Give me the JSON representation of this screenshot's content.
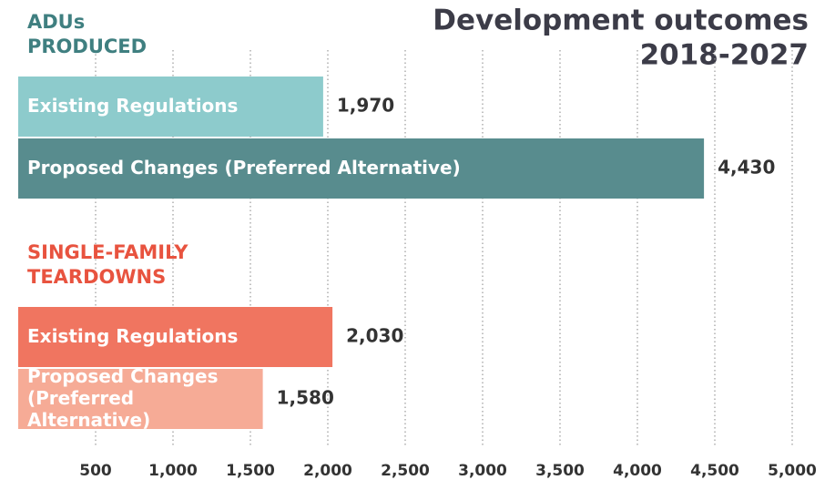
{
  "chart_data": {
    "type": "bar",
    "title": "Development outcomes",
    "subtitle": "2018-2027",
    "xlim": [
      0,
      5000
    ],
    "xticks": [
      500,
      {
        "value": 1000,
        "label": "1,000"
      },
      {
        "value": 1500,
        "label": "1,500"
      },
      {
        "value": 2000,
        "label": "2,000"
      },
      {
        "value": 2500,
        "label": "2,500"
      },
      {
        "value": 3000,
        "label": "3,000"
      },
      {
        "value": 3500,
        "label": "3,500"
      },
      {
        "value": 4000,
        "label": "4,000"
      },
      {
        "value": 4500,
        "label": "4,500"
      },
      {
        "value": 5000,
        "label": "5,000"
      }
    ],
    "grid": true,
    "groups": [
      {
        "name": "ADUs PRODUCED",
        "color": "#3f7f80",
        "categories": [
          "Existing Regulations",
          "Proposed Changes (Preferred Alternative)"
        ],
        "values": [
          1970,
          4430
        ],
        "value_labels": [
          "1,970",
          "4,430"
        ],
        "colors": [
          "#8dcbcc",
          "#588c8e"
        ]
      },
      {
        "name": "SINGLE-FAMILY TEARDOWNS",
        "color": "#e8533f",
        "categories": [
          "Existing Regulations",
          "Proposed Changes (Preferred Alternative)"
        ],
        "values": [
          2030,
          1580
        ],
        "value_labels": [
          "2,030",
          "1,580"
        ],
        "colors": [
          "#f07560",
          "#f6ab96"
        ]
      }
    ]
  }
}
